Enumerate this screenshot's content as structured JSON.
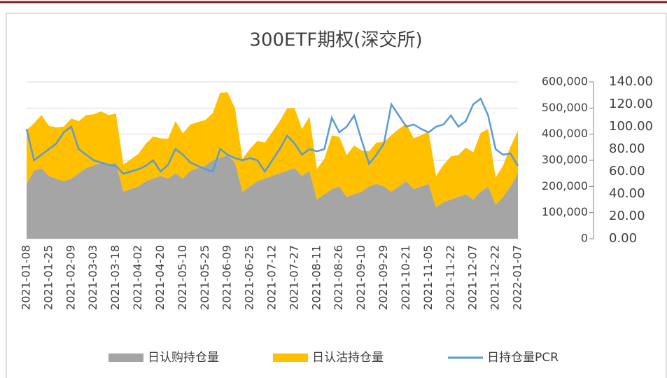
{
  "chart_data": {
    "type": "area",
    "title": "300ETF期权(深交所)",
    "categories": [
      "2021-01-08",
      null,
      null,
      "2021-01-25",
      null,
      null,
      "2021-02-09",
      null,
      null,
      "2021-03-03",
      null,
      null,
      "2021-03-18",
      null,
      null,
      "2021-04-02",
      null,
      null,
      "2021-04-20",
      null,
      null,
      "2021-05-10",
      null,
      null,
      "2021-05-25",
      null,
      null,
      "2021-06-09",
      null,
      null,
      "2021-06-25",
      null,
      null,
      "2021-07-12",
      null,
      null,
      "2021-07-27",
      null,
      null,
      "2021-08-11",
      null,
      null,
      "2021-08-26",
      null,
      null,
      "2021-09-10",
      null,
      null,
      "2021-09-29",
      null,
      null,
      "2021-10-21",
      null,
      null,
      "2021-11-05",
      null,
      null,
      "2021-11-22",
      null,
      null,
      "2021-12-07",
      null,
      null,
      "2021-12-22",
      null,
      null,
      "2022-01-07"
    ],
    "series": [
      {
        "name": "日认购持仓量",
        "color": "#a5a5a5",
        "values": [
          210000,
          260000,
          270000,
          240000,
          230000,
          220000,
          230000,
          250000,
          270000,
          280000,
          290000,
          285000,
          290000,
          180000,
          190000,
          200000,
          220000,
          230000,
          240000,
          230000,
          250000,
          230000,
          260000,
          270000,
          280000,
          300000,
          310000,
          320000,
          290000,
          180000,
          200000,
          220000,
          230000,
          240000,
          250000,
          260000,
          270000,
          240000,
          260000,
          150000,
          170000,
          190000,
          200000,
          160000,
          170000,
          180000,
          200000,
          210000,
          200000,
          180000,
          200000,
          220000,
          190000,
          200000,
          210000,
          120000,
          140000,
          150000,
          160000,
          170000,
          150000,
          180000,
          200000,
          130000,
          160000,
          200000,
          250000
        ]
      },
      {
        "name": "日认沽持仓量",
        "color": "#ffc000",
        "values": [
          206000,
          182000,
          203000,
          192000,
          196000,
          209000,
          230000,
          200000,
          203000,
          196000,
          197000,
          188000,
          189000,
          104000,
          114000,
          124000,
          143000,
          161000,
          144000,
          152000,
          200000,
          173000,
          177000,
          176000,
          174000,
          180000,
          248000,
          240000,
          209000,
          126000,
          144000,
          154000,
          138000,
          168000,
          200000,
          239000,
          230000,
          180000,
          208000,
          117000,
          136000,
          205000,
          190000,
          160000,
          187000,
          158000,
          134000,
          158000,
          170000,
          216000,
          220000,
          220000,
          194000,
          196000,
          200000,
          120000,
          143000,
          165000,
          160000,
          179000,
          180000,
          225000,
          220000,
          104000,
          120000,
          152000,
          163000
        ]
      },
      {
        "name": "日持仓量PCR",
        "color": "#5b9bd5",
        "axis": "y2",
        "values": [
          98,
          70,
          75,
          80,
          85,
          95,
          100,
          80,
          75,
          70,
          68,
          66,
          65,
          58,
          60,
          62,
          65,
          70,
          60,
          66,
          80,
          75,
          68,
          65,
          62,
          60,
          80,
          75,
          72,
          70,
          72,
          70,
          60,
          70,
          80,
          92,
          85,
          75,
          80,
          78,
          80,
          108,
          95,
          100,
          110,
          88,
          67,
          75,
          85,
          120,
          110,
          100,
          102,
          98,
          95,
          100,
          102,
          110,
          100,
          105,
          120,
          125,
          110,
          80,
          75,
          76,
          65
        ]
      }
    ],
    "ylim": [
      0,
      600000
    ],
    "yticks": [
      {
        "value": 0,
        "label": "0"
      },
      {
        "value": 100000,
        "label": "100,000"
      },
      {
        "value": 200000,
        "label": "200,000"
      },
      {
        "value": 300000,
        "label": "300,000"
      },
      {
        "value": 400000,
        "label": "400,000"
      },
      {
        "value": 500000,
        "label": "500,000"
      },
      {
        "value": 600000,
        "label": "600,000"
      }
    ],
    "y2lim": [
      0,
      140
    ],
    "y2ticks": [
      {
        "value": 0,
        "label": "0.00"
      },
      {
        "value": 20,
        "label": "20.00"
      },
      {
        "value": 40,
        "label": "40.00"
      },
      {
        "value": 60,
        "label": "60.00"
      },
      {
        "value": 80,
        "label": "80.00"
      },
      {
        "value": 100,
        "label": "100.00"
      },
      {
        "value": 120,
        "label": "120.00"
      },
      {
        "value": 140,
        "label": "140.00"
      }
    ],
    "grid": true,
    "stacked": true,
    "legend": "bottom"
  }
}
